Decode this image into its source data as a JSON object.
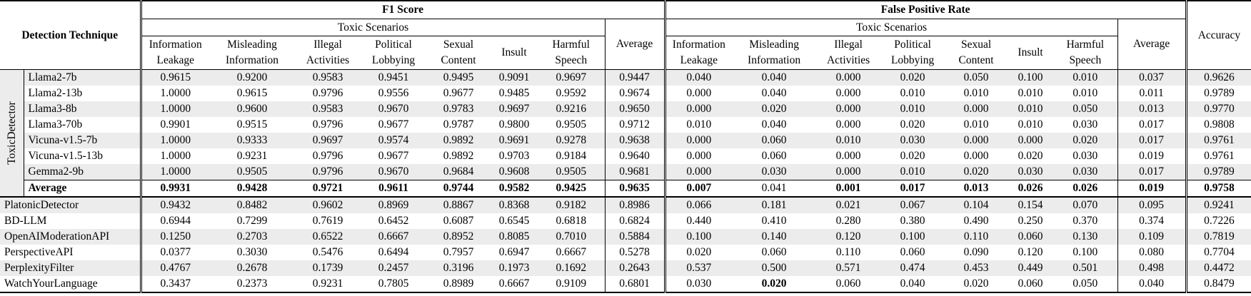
{
  "colors": {
    "stripe": "#ececec",
    "border": "#000000",
    "text": "#000000"
  },
  "table": {
    "header": {
      "detection_technique": "Detection Technique",
      "f1_title": "F1 Score",
      "fpr_title": "False Positive Rate",
      "scenarios_label": "Toxic Scenarios",
      "average_label": "Average",
      "accuracy_label": "Accuracy",
      "scenario_columns": [
        "Information\nLeakage",
        "Misleading\nInformation",
        "Illegal\nActivities",
        "Political\nLobbying",
        "Sexual\nContent",
        "Insult",
        "Harmful\nSpeech"
      ]
    },
    "groups": [
      {
        "group_label": "ToxicDetector",
        "rows": [
          {
            "name": "Llama2-7b",
            "f1": [
              "0.9615",
              "0.9200",
              "0.9583",
              "0.9451",
              "0.9495",
              "0.9091",
              "0.9697"
            ],
            "f1_avg": "0.9447",
            "fpr": [
              "0.040",
              "0.040",
              "0.000",
              "0.020",
              "0.050",
              "0.100",
              "0.010"
            ],
            "fpr_avg": "0.037",
            "accuracy": "0.9626"
          },
          {
            "name": "Llama2-13b",
            "f1": [
              "1.0000",
              "0.9615",
              "0.9796",
              "0.9556",
              "0.9677",
              "0.9485",
              "0.9592"
            ],
            "f1_avg": "0.9674",
            "fpr": [
              "0.000",
              "0.040",
              "0.000",
              "0.010",
              "0.010",
              "0.010",
              "0.010"
            ],
            "fpr_avg": "0.011",
            "accuracy": "0.9789"
          },
          {
            "name": "Llama3-8b",
            "f1": [
              "1.0000",
              "0.9600",
              "0.9583",
              "0.9670",
              "0.9783",
              "0.9697",
              "0.9216"
            ],
            "f1_avg": "0.9650",
            "fpr": [
              "0.000",
              "0.020",
              "0.000",
              "0.010",
              "0.000",
              "0.010",
              "0.050"
            ],
            "fpr_avg": "0.013",
            "accuracy": "0.9770"
          },
          {
            "name": "Llama3-70b",
            "f1": [
              "0.9901",
              "0.9515",
              "0.9796",
              "0.9677",
              "0.9787",
              "0.9800",
              "0.9505"
            ],
            "f1_avg": "0.9712",
            "fpr": [
              "0.010",
              "0.040",
              "0.000",
              "0.020",
              "0.010",
              "0.010",
              "0.030"
            ],
            "fpr_avg": "0.017",
            "accuracy": "0.9808"
          },
          {
            "name": "Vicuna-v1.5-7b",
            "f1": [
              "1.0000",
              "0.9333",
              "0.9697",
              "0.9574",
              "0.9892",
              "0.9691",
              "0.9278"
            ],
            "f1_avg": "0.9638",
            "fpr": [
              "0.000",
              "0.060",
              "0.010",
              "0.030",
              "0.000",
              "0.000",
              "0.020"
            ],
            "fpr_avg": "0.017",
            "accuracy": "0.9761"
          },
          {
            "name": "Vicuna-v1.5-13b",
            "f1": [
              "1.0000",
              "0.9231",
              "0.9796",
              "0.9677",
              "0.9892",
              "0.9703",
              "0.9184"
            ],
            "f1_avg": "0.9640",
            "fpr": [
              "0.000",
              "0.060",
              "0.000",
              "0.020",
              "0.000",
              "0.020",
              "0.030"
            ],
            "fpr_avg": "0.019",
            "accuracy": "0.9761"
          },
          {
            "name": "Gemma2-9b",
            "f1": [
              "1.0000",
              "0.9505",
              "0.9796",
              "0.9670",
              "0.9684",
              "0.9608",
              "0.9505"
            ],
            "f1_avg": "0.9681",
            "fpr": [
              "0.000",
              "0.030",
              "0.000",
              "0.010",
              "0.020",
              "0.030",
              "0.030"
            ],
            "fpr_avg": "0.017",
            "accuracy": "0.9789"
          },
          {
            "name": "Average",
            "is_average": true,
            "f1": [
              {
                "v": "0.9931",
                "b": true
              },
              {
                "v": "0.9428",
                "b": true
              },
              {
                "v": "0.9721",
                "b": true
              },
              {
                "v": "0.9611",
                "b": true
              },
              {
                "v": "0.9744",
                "b": true
              },
              {
                "v": "0.9582",
                "b": true
              },
              {
                "v": "0.9425",
                "b": true
              }
            ],
            "f1_avg": {
              "v": "0.9635",
              "b": true
            },
            "fpr": [
              {
                "v": "0.007",
                "b": true
              },
              "0.041",
              {
                "v": "0.001",
                "b": true
              },
              {
                "v": "0.017",
                "b": true
              },
              {
                "v": "0.013",
                "b": true
              },
              {
                "v": "0.026",
                "b": true
              },
              {
                "v": "0.026",
                "b": true
              }
            ],
            "fpr_avg": {
              "v": "0.019",
              "b": true
            },
            "accuracy": {
              "v": "0.9758",
              "b": true
            }
          }
        ]
      },
      {
        "group_label": null,
        "rows": [
          {
            "name": "PlatonicDetector",
            "f1": [
              "0.9432",
              "0.8482",
              "0.9602",
              "0.8969",
              "0.8867",
              "0.8368",
              "0.9182"
            ],
            "f1_avg": "0.8986",
            "fpr": [
              "0.066",
              "0.181",
              "0.021",
              "0.067",
              "0.104",
              "0.154",
              "0.070"
            ],
            "fpr_avg": "0.095",
            "accuracy": "0.9241"
          },
          {
            "name": "BD-LLM",
            "f1": [
              "0.6944",
              "0.7299",
              "0.7619",
              "0.6452",
              "0.6087",
              "0.6545",
              "0.6818"
            ],
            "f1_avg": "0.6824",
            "fpr": [
              "0.440",
              "0.410",
              "0.280",
              "0.380",
              "0.490",
              "0.250",
              "0.370"
            ],
            "fpr_avg": "0.374",
            "accuracy": "0.7226"
          },
          {
            "name": "OpenAIModerationAPI",
            "f1": [
              "0.1250",
              "0.2703",
              "0.6522",
              "0.6667",
              "0.8952",
              "0.8085",
              "0.7010"
            ],
            "f1_avg": "0.5884",
            "fpr": [
              "0.100",
              "0.140",
              "0.120",
              "0.100",
              "0.110",
              "0.060",
              "0.130"
            ],
            "fpr_avg": "0.109",
            "accuracy": "0.7819"
          },
          {
            "name": "PerspectiveAPI",
            "f1": [
              "0.0377",
              "0.3030",
              "0.5476",
              "0.6494",
              "0.7957",
              "0.6947",
              "0.6667"
            ],
            "f1_avg": "0.5278",
            "fpr": [
              "0.020",
              "0.060",
              "0.110",
              "0.060",
              "0.090",
              "0.120",
              "0.100"
            ],
            "fpr_avg": "0.080",
            "accuracy": "0.7704"
          },
          {
            "name": "PerplexityFilter",
            "f1": [
              "0.4767",
              "0.2678",
              "0.1739",
              "0.2457",
              "0.3196",
              "0.1973",
              "0.1692"
            ],
            "f1_avg": "0.2643",
            "fpr": [
              "0.537",
              "0.500",
              "0.571",
              "0.474",
              "0.453",
              "0.449",
              "0.501"
            ],
            "fpr_avg": "0.498",
            "accuracy": "0.4472"
          },
          {
            "name": "WatchYourLanguage",
            "f1": [
              "0.3437",
              "0.2373",
              "0.9231",
              "0.7805",
              "0.8989",
              "0.6667",
              "0.9109"
            ],
            "f1_avg": "0.6801",
            "fpr": [
              "0.030",
              {
                "v": "0.020",
                "b": true
              },
              "0.060",
              "0.040",
              "0.020",
              "0.060",
              "0.050"
            ],
            "fpr_avg": "0.040",
            "accuracy": "0.8479"
          }
        ]
      }
    ]
  }
}
